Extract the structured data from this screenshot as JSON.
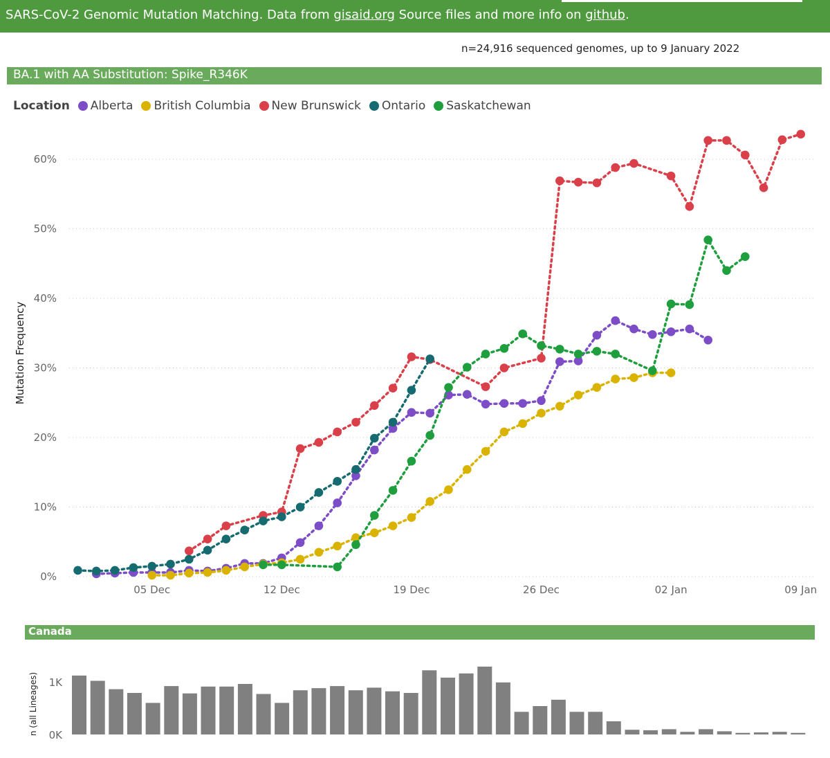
{
  "header": {
    "prefix": "SARS-CoV-2 Genomic Mutation Matching. Data from ",
    "link1": "gisaid.org",
    "middle": " Source files and more info on ",
    "link2": "github",
    "suffix": "."
  },
  "subtitle": "n=24,916 sequenced genomes, up to 9 January 2022",
  "main_banner": "BA.1 with AA Substitution: Spike_R346K",
  "legend": {
    "title": "Location",
    "items": [
      {
        "label": "Alberta",
        "color": "#7c4dc7"
      },
      {
        "label": "British Columbia",
        "color": "#d9b300"
      },
      {
        "label": "New Brunswick",
        "color": "#d9404a"
      },
      {
        "label": "Ontario",
        "color": "#166b70"
      },
      {
        "label": "Saskatchewan",
        "color": "#1f9e3e"
      }
    ]
  },
  "canada_banner": "Canada",
  "chart_data": [
    {
      "type": "line",
      "ylabel": "Mutation Frequency",
      "ylim": [
        0,
        65
      ],
      "yticks": [
        0,
        10,
        20,
        30,
        40,
        50,
        60
      ],
      "ytick_labels": [
        "0%",
        "10%",
        "20%",
        "30%",
        "40%",
        "50%",
        "60%"
      ],
      "x_ticks": [
        {
          "day": 5,
          "label": "05 Dec"
        },
        {
          "day": 12,
          "label": "12 Dec"
        },
        {
          "day": 19,
          "label": "19 Dec"
        },
        {
          "day": 26,
          "label": "26 Dec"
        },
        {
          "day": 33,
          "label": "02 Jan"
        },
        {
          "day": 40,
          "label": "09 Jan"
        }
      ],
      "grid": "horizontal dotted",
      "line_style": "dotted with markers",
      "series": [
        {
          "name": "Alberta",
          "color": "#7c4dc7",
          "points": [
            [
              2,
              0.4
            ],
            [
              3,
              0.5
            ],
            [
              4,
              0.6
            ],
            [
              5,
              0.6
            ],
            [
              6,
              0.6
            ],
            [
              7,
              0.9
            ],
            [
              8,
              0.8
            ],
            [
              9,
              1.2
            ],
            [
              10,
              1.9
            ],
            [
              11,
              1.9
            ],
            [
              12,
              2.7
            ],
            [
              13,
              4.9
            ],
            [
              14,
              7.3
            ],
            [
              15,
              10.6
            ],
            [
              16,
              14.5
            ],
            [
              17,
              18.2
            ],
            [
              18,
              21.3
            ],
            [
              19,
              23.6
            ],
            [
              20,
              23.5
            ],
            [
              21,
              26.1
            ],
            [
              22,
              26.2
            ],
            [
              23,
              24.8
            ],
            [
              24,
              24.9
            ],
            [
              25,
              24.9
            ],
            [
              26,
              25.3
            ],
            [
              27,
              30.9
            ],
            [
              28,
              31.0
            ],
            [
              29,
              34.7
            ],
            [
              30,
              36.8
            ],
            [
              31,
              35.6
            ],
            [
              32,
              34.8
            ],
            [
              33,
              35.2
            ],
            [
              34,
              35.6
            ],
            [
              35,
              34.0
            ]
          ]
        },
        {
          "name": "British Columbia",
          "color": "#d9b300",
          "points": [
            [
              5,
              0.2
            ],
            [
              6,
              0.2
            ],
            [
              7,
              0.5
            ],
            [
              8,
              0.6
            ],
            [
              9,
              0.9
            ],
            [
              10,
              1.4
            ],
            [
              11,
              1.8
            ],
            [
              12,
              2.0
            ],
            [
              13,
              2.5
            ],
            [
              14,
              3.5
            ],
            [
              15,
              4.4
            ],
            [
              16,
              5.6
            ],
            [
              17,
              6.3
            ],
            [
              18,
              7.3
            ],
            [
              19,
              8.5
            ],
            [
              20,
              10.8
            ],
            [
              21,
              12.5
            ],
            [
              22,
              15.4
            ],
            [
              23,
              18.0
            ],
            [
              24,
              20.8
            ],
            [
              25,
              22.0
            ],
            [
              26,
              23.5
            ],
            [
              27,
              24.5
            ],
            [
              28,
              26.1
            ],
            [
              29,
              27.2
            ],
            [
              30,
              28.4
            ],
            [
              31,
              28.6
            ],
            [
              32,
              29.3
            ],
            [
              33,
              29.3
            ]
          ]
        },
        {
          "name": "New Brunswick",
          "color": "#d9404a",
          "points": [
            [
              7,
              3.7
            ],
            [
              8,
              5.4
            ],
            [
              9,
              7.3
            ],
            [
              11,
              8.8
            ],
            [
              12,
              9.3
            ],
            [
              13,
              18.4
            ],
            [
              14,
              19.3
            ],
            [
              15,
              20.8
            ],
            [
              16,
              22.2
            ],
            [
              17,
              24.6
            ],
            [
              18,
              27.1
            ],
            [
              19,
              31.6
            ],
            [
              20,
              31.2
            ],
            [
              23,
              27.3
            ],
            [
              24,
              30.0
            ],
            [
              26,
              31.4
            ],
            [
              27,
              56.9
            ],
            [
              28,
              56.7
            ],
            [
              29,
              56.6
            ],
            [
              30,
              58.8
            ],
            [
              31,
              59.4
            ],
            [
              33,
              57.6
            ],
            [
              34,
              53.2
            ],
            [
              35,
              62.7
            ],
            [
              36,
              62.7
            ],
            [
              37,
              60.6
            ],
            [
              38,
              55.9
            ],
            [
              39,
              62.8
            ],
            [
              40,
              63.6
            ]
          ]
        },
        {
          "name": "Ontario",
          "color": "#166b70",
          "points": [
            [
              1,
              0.9
            ],
            [
              2,
              0.8
            ],
            [
              3,
              0.9
            ],
            [
              4,
              1.3
            ],
            [
              5,
              1.5
            ],
            [
              6,
              1.8
            ],
            [
              7,
              2.5
            ],
            [
              8,
              3.8
            ],
            [
              9,
              5.4
            ],
            [
              10,
              6.7
            ],
            [
              11,
              8.0
            ],
            [
              12,
              8.6
            ],
            [
              13,
              10.0
            ],
            [
              14,
              12.1
            ],
            [
              15,
              13.7
            ],
            [
              16,
              15.4
            ],
            [
              17,
              19.9
            ],
            [
              18,
              22.2
            ],
            [
              19,
              26.8
            ],
            [
              20,
              31.3
            ]
          ]
        },
        {
          "name": "Saskatchewan",
          "color": "#1f9e3e",
          "points": [
            [
              11,
              1.7
            ],
            [
              12,
              1.7
            ],
            [
              15,
              1.4
            ],
            [
              16,
              4.6
            ],
            [
              17,
              8.8
            ],
            [
              18,
              12.4
            ],
            [
              19,
              16.6
            ],
            [
              20,
              20.3
            ],
            [
              21,
              27.2
            ],
            [
              22,
              30.1
            ],
            [
              23,
              32.0
            ],
            [
              24,
              32.8
            ],
            [
              25,
              34.9
            ],
            [
              26,
              33.2
            ],
            [
              27,
              32.7
            ],
            [
              28,
              32.0
            ],
            [
              29,
              32.4
            ],
            [
              30,
              32.0
            ],
            [
              32,
              29.6
            ],
            [
              33,
              39.2
            ],
            [
              34,
              39.1
            ],
            [
              35,
              48.4
            ],
            [
              36,
              44.0
            ],
            [
              37,
              46.0
            ]
          ]
        }
      ]
    },
    {
      "type": "bar",
      "ylabel": "n (all Lineages)",
      "ylim": [
        0,
        1300
      ],
      "yticks": [
        0,
        1000
      ],
      "ytick_labels": [
        "0K",
        "1K"
      ],
      "color": "#808080",
      "values": [
        1120,
        1020,
        860,
        790,
        600,
        920,
        780,
        910,
        910,
        960,
        770,
        600,
        840,
        880,
        920,
        840,
        890,
        820,
        790,
        1220,
        1080,
        1160,
        1290,
        990,
        430,
        540,
        660,
        430,
        430,
        250,
        90,
        80,
        100,
        50,
        100,
        60,
        30,
        40,
        50,
        30
      ]
    }
  ]
}
